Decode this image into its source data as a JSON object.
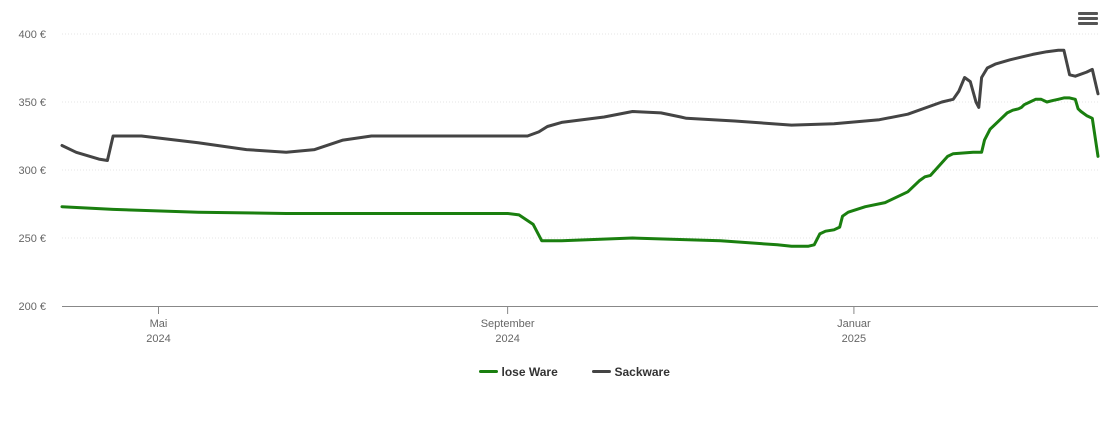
{
  "chart_data": {
    "type": "line",
    "ylim": [
      200,
      400
    ],
    "y_ticks": [
      {
        "value": 200,
        "label": "200 €"
      },
      {
        "value": 250,
        "label": "250 €"
      },
      {
        "value": 300,
        "label": "300 €"
      },
      {
        "value": 350,
        "label": "350 €"
      },
      {
        "value": 400,
        "label": "400 €"
      }
    ],
    "xlim": [
      "2024-03-28",
      "2025-03-28"
    ],
    "x_ticks": [
      {
        "date": "2024-05-01",
        "label": "Mai",
        "sublabel": "2024"
      },
      {
        "date": "2024-09-01",
        "label": "September",
        "sublabel": "2024"
      },
      {
        "date": "2025-01-01",
        "label": "Januar",
        "sublabel": "2025"
      }
    ],
    "grid": true,
    "legend_position": "bottom-center",
    "series": [
      {
        "name": "lose Ware",
        "color": "#1a7f0f",
        "points": [
          [
            "2024-03-28",
            273
          ],
          [
            "2024-04-15",
            271
          ],
          [
            "2024-05-15",
            269
          ],
          [
            "2024-06-15",
            268
          ],
          [
            "2024-07-15",
            268
          ],
          [
            "2024-08-15",
            268
          ],
          [
            "2024-09-01",
            268
          ],
          [
            "2024-09-05",
            267
          ],
          [
            "2024-09-10",
            260
          ],
          [
            "2024-09-13",
            248
          ],
          [
            "2024-09-20",
            248
          ],
          [
            "2024-10-15",
            250
          ],
          [
            "2024-11-15",
            248
          ],
          [
            "2024-12-05",
            245
          ],
          [
            "2024-12-10",
            244
          ],
          [
            "2024-12-16",
            244
          ],
          [
            "2024-12-18",
            245
          ],
          [
            "2024-12-20",
            253
          ],
          [
            "2024-12-22",
            255
          ],
          [
            "2024-12-25",
            256
          ],
          [
            "2024-12-27",
            258
          ],
          [
            "2024-12-28",
            266
          ],
          [
            "2024-12-30",
            269
          ],
          [
            "2025-01-05",
            273
          ],
          [
            "2025-01-12",
            276
          ],
          [
            "2025-01-20",
            284
          ],
          [
            "2025-01-24",
            292
          ],
          [
            "2025-01-26",
            295
          ],
          [
            "2025-01-28",
            296
          ],
          [
            "2025-02-03",
            310
          ],
          [
            "2025-02-05",
            312
          ],
          [
            "2025-02-12",
            313
          ],
          [
            "2025-02-15",
            313
          ],
          [
            "2025-02-16",
            322
          ],
          [
            "2025-02-18",
            330
          ],
          [
            "2025-02-22",
            338
          ],
          [
            "2025-02-24",
            342
          ],
          [
            "2025-02-26",
            344
          ],
          [
            "2025-02-28",
            345
          ],
          [
            "2025-03-01",
            346
          ],
          [
            "2025-03-02",
            348
          ],
          [
            "2025-03-04",
            350
          ],
          [
            "2025-03-06",
            352
          ],
          [
            "2025-03-08",
            352
          ],
          [
            "2025-03-10",
            350
          ],
          [
            "2025-03-12",
            351
          ],
          [
            "2025-03-14",
            352
          ],
          [
            "2025-03-16",
            353
          ],
          [
            "2025-03-18",
            353
          ],
          [
            "2025-03-20",
            352
          ],
          [
            "2025-03-21",
            345
          ],
          [
            "2025-03-22",
            343
          ],
          [
            "2025-03-24",
            340
          ],
          [
            "2025-03-26",
            338
          ],
          [
            "2025-03-28",
            310
          ]
        ]
      },
      {
        "name": "Sackware",
        "color": "#444444",
        "points": [
          [
            "2024-03-28",
            318
          ],
          [
            "2024-04-02",
            313
          ],
          [
            "2024-04-10",
            308
          ],
          [
            "2024-04-13",
            307
          ],
          [
            "2024-04-15",
            325
          ],
          [
            "2024-04-25",
            325
          ],
          [
            "2024-05-15",
            320
          ],
          [
            "2024-06-01",
            315
          ],
          [
            "2024-06-15",
            313
          ],
          [
            "2024-06-25",
            315
          ],
          [
            "2024-07-05",
            322
          ],
          [
            "2024-07-15",
            325
          ],
          [
            "2024-08-01",
            325
          ],
          [
            "2024-08-15",
            325
          ],
          [
            "2024-09-01",
            325
          ],
          [
            "2024-09-08",
            325
          ],
          [
            "2024-09-12",
            328
          ],
          [
            "2024-09-15",
            332
          ],
          [
            "2024-09-20",
            335
          ],
          [
            "2024-10-05",
            339
          ],
          [
            "2024-10-15",
            343
          ],
          [
            "2024-10-25",
            342
          ],
          [
            "2024-11-01",
            339
          ],
          [
            "2024-11-03",
            338
          ],
          [
            "2024-11-20",
            336
          ],
          [
            "2024-12-10",
            333
          ],
          [
            "2024-12-25",
            334
          ],
          [
            "2025-01-10",
            337
          ],
          [
            "2025-01-20",
            341
          ],
          [
            "2025-02-01",
            350
          ],
          [
            "2025-02-05",
            352
          ],
          [
            "2025-02-07",
            358
          ],
          [
            "2025-02-09",
            368
          ],
          [
            "2025-02-11",
            365
          ],
          [
            "2025-02-13",
            350
          ],
          [
            "2025-02-14",
            346
          ],
          [
            "2025-02-15",
            368
          ],
          [
            "2025-02-17",
            375
          ],
          [
            "2025-02-20",
            378
          ],
          [
            "2025-02-25",
            381
          ],
          [
            "2025-03-01",
            383
          ],
          [
            "2025-03-05",
            385
          ],
          [
            "2025-03-10",
            387
          ],
          [
            "2025-03-14",
            388
          ],
          [
            "2025-03-16",
            388
          ],
          [
            "2025-03-18",
            370
          ],
          [
            "2025-03-20",
            369
          ],
          [
            "2025-03-24",
            372
          ],
          [
            "2025-03-26",
            374
          ],
          [
            "2025-03-28",
            356
          ]
        ]
      }
    ]
  },
  "toolbar": {
    "menu_icon": "hamburger-menu-icon"
  }
}
